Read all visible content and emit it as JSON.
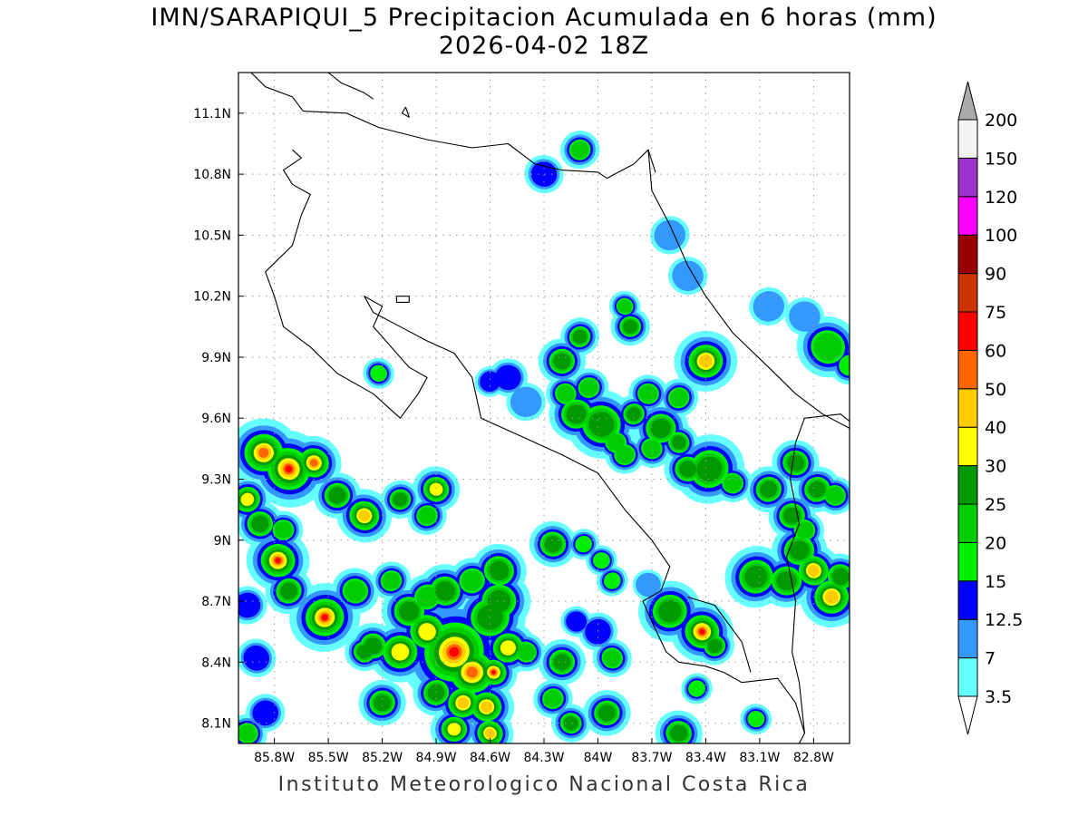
{
  "title_line1": "IMN/SARAPIQUI_5 Precipitacion Acumulada en 6 horas (mm)",
  "title_line2": "2026-04-02 18Z",
  "footer": "Instituto Meteorologico Nacional Costa Rica",
  "map": {
    "lon_range": [
      -86.0,
      -82.6
    ],
    "lat_range": [
      8.0,
      11.3
    ],
    "lat_ticks": [
      {
        "value": 11.1,
        "label": "11.1N"
      },
      {
        "value": 10.8,
        "label": "10.8N"
      },
      {
        "value": 10.5,
        "label": "10.5N"
      },
      {
        "value": 10.2,
        "label": "10.2N"
      },
      {
        "value": 9.9,
        "label": "9.9N"
      },
      {
        "value": 9.6,
        "label": "9.6N"
      },
      {
        "value": 9.3,
        "label": "9.3N"
      },
      {
        "value": 9.0,
        "label": "9N"
      },
      {
        "value": 8.7,
        "label": "8.7N"
      },
      {
        "value": 8.4,
        "label": "8.4N"
      },
      {
        "value": 8.1,
        "label": "8.1N"
      }
    ],
    "lon_ticks": [
      {
        "value": -85.8,
        "label": "85.8W"
      },
      {
        "value": -85.5,
        "label": "85.5W"
      },
      {
        "value": -85.2,
        "label": "85.2W"
      },
      {
        "value": -84.9,
        "label": "84.9W"
      },
      {
        "value": -84.6,
        "label": "84.6W"
      },
      {
        "value": -84.3,
        "label": "84.3W"
      },
      {
        "value": -84.0,
        "label": "84W"
      },
      {
        "value": -83.7,
        "label": "83.7W"
      },
      {
        "value": -83.4,
        "label": "83.4W"
      },
      {
        "value": -83.1,
        "label": "83.1W"
      },
      {
        "value": -82.8,
        "label": "82.8W"
      }
    ],
    "grid": "dotted"
  },
  "legend": {
    "unit": "mm",
    "levels": [
      "3.5",
      "7",
      "12.5",
      "15",
      "20",
      "25",
      "30",
      "40",
      "50",
      "60",
      "75",
      "90",
      "100",
      "120",
      "150",
      "200"
    ],
    "colors": [
      "#66ffff",
      "#3399ff",
      "#0000ff",
      "#00ee00",
      "#00cc00",
      "#009900",
      "#ffff00",
      "#ffcc00",
      "#ff6600",
      "#ff0000",
      "#cc3300",
      "#990000",
      "#ff00ff",
      "#9933cc",
      "#f4f4f4"
    ],
    "over_color": "#aaaaaa",
    "under_color": "#ffffff"
  }
}
